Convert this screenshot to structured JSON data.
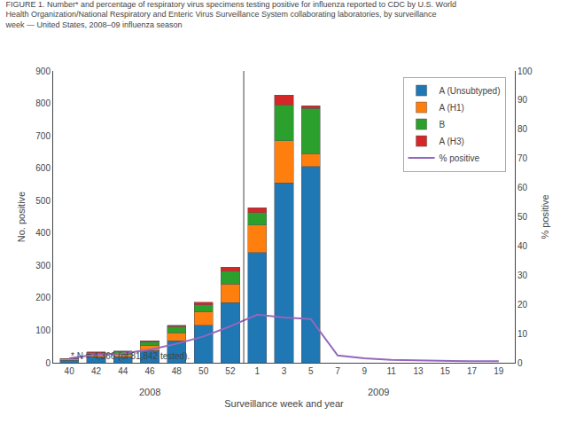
{
  "chart_data": {
    "type": "bar",
    "title": [
      "FIGURE 1. Number* and percentage of respiratory virus specimens testing positive for influenza reported to CDC by U.S. World",
      "Health Organization/National Respiratory and Enteric Virus Surveillance System collaborating laboratories, by surveillance",
      "week — United States, 2008–09 influenza season"
    ],
    "xlabel": "Surveillance week and year",
    "ylabel": "No. positive",
    "y2label": "% positive",
    "categories": [
      "40",
      "42",
      "44",
      "46",
      "48",
      "50",
      "52",
      "1",
      "3",
      "5",
      "7",
      "9",
      "11",
      "13",
      "15",
      "17",
      "19"
    ],
    "stacked": true,
    "series": [
      {
        "name": "A (Unsubtyped)",
        "type": "bar",
        "values": [
          8,
          18,
          18,
          38,
          68,
          115,
          185,
          340,
          555,
          605,
          0,
          0,
          0,
          0,
          0,
          0,
          0
        ]
      },
      {
        "name": "A (H1)",
        "type": "bar",
        "values": [
          3,
          8,
          8,
          15,
          25,
          42,
          58,
          85,
          130,
          40,
          0,
          0,
          0,
          0,
          0,
          0,
          0
        ]
      },
      {
        "name": "B",
        "type": "bar",
        "values": [
          1,
          5,
          8,
          12,
          18,
          22,
          40,
          38,
          110,
          140,
          0,
          0,
          0,
          0,
          0,
          0,
          0
        ]
      },
      {
        "name": "A (H3)",
        "type": "bar",
        "values": [
          1,
          2,
          2,
          3,
          5,
          8,
          12,
          15,
          30,
          8,
          0,
          0,
          0,
          0,
          0,
          0,
          0
        ]
      },
      {
        "name": "% positive",
        "type": "line",
        "axis": "y2",
        "values": [
          1.5,
          2.8,
          3.2,
          4.5,
          6.5,
          9.0,
          12.5,
          16.5,
          15.5,
          15.0,
          2.5,
          1.5,
          1.0,
          0.8,
          0.5,
          0.5,
          0.5
        ]
      }
    ],
    "ylim": [
      0,
      900
    ],
    "yticks": [
      0,
      100,
      200,
      300,
      400,
      500,
      600,
      700,
      800,
      900
    ],
    "y2lim": [
      0,
      100
    ],
    "y2ticks": [
      0,
      10,
      20,
      30,
      40,
      50,
      60,
      70,
      80,
      90,
      100
    ],
    "annotations": [
      {
        "text": "2008",
        "first": "40",
        "last": "52"
      },
      {
        "text": "2009",
        "first": "1",
        "last": "19"
      },
      "* N = 4,366 (of 81,842 tested)."
    ],
    "legend": "upper right",
    "grid": false
  }
}
